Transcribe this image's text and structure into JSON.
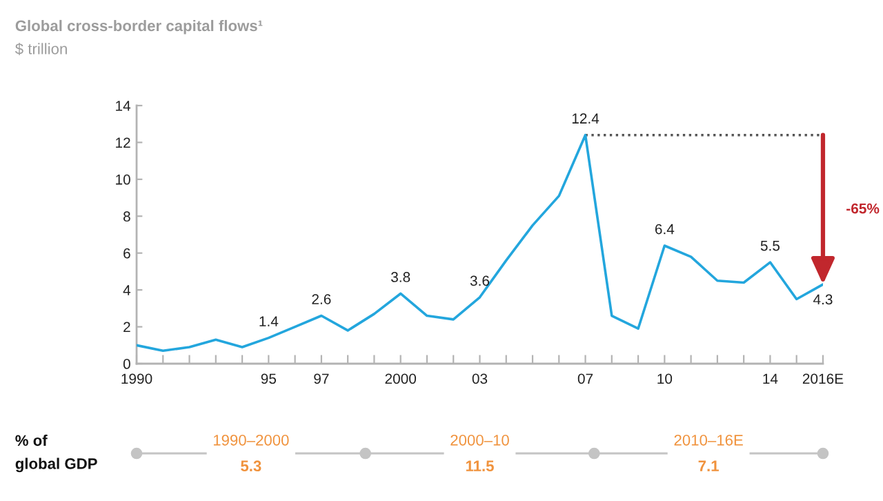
{
  "chart_data": [
    {
      "type": "line",
      "title": "Global cross-border capital flows¹",
      "subtitle": "$ trillion",
      "x": [
        1990,
        1991,
        1992,
        1993,
        1994,
        1995,
        1996,
        1997,
        1998,
        1999,
        2000,
        2001,
        2002,
        2003,
        2004,
        2005,
        2006,
        2007,
        2008,
        2009,
        2010,
        2011,
        2012,
        2013,
        2014,
        2015,
        2016
      ],
      "series": [
        {
          "color": "#23a6dd",
          "values": [
            1.0,
            0.7,
            0.9,
            1.3,
            0.9,
            1.4,
            2.0,
            2.6,
            1.8,
            2.7,
            3.8,
            2.6,
            2.4,
            3.6,
            5.6,
            7.5,
            9.1,
            12.4,
            2.6,
            1.9,
            6.4,
            5.8,
            4.5,
            4.4,
            5.5,
            3.5,
            4.3
          ],
          "value_labels": [
            null,
            null,
            null,
            null,
            null,
            "1.4",
            null,
            "2.6",
            null,
            null,
            "3.8",
            null,
            null,
            "3.6",
            null,
            null,
            null,
            "12.4",
            null,
            null,
            "6.4",
            null,
            null,
            null,
            "5.5",
            null,
            "4.3"
          ]
        },
        {
          "type": "line",
          "x": [
            2007,
            2016
          ],
          "values": [
            12.4,
            12.4
          ],
          "color": "#555555",
          "line_style": "dotted"
        }
      ],
      "xlim": [
        1990,
        2016
      ],
      "xticks": [
        1990,
        {
          "value": 1991,
          "label": null
        },
        {
          "value": 1992,
          "label": null
        },
        {
          "value": 1993,
          "label": null
        },
        {
          "value": 1994,
          "label": null
        },
        {
          "value": 1995,
          "label": "95"
        },
        {
          "value": 1996,
          "label": null
        },
        {
          "value": 1997,
          "label": "97"
        },
        {
          "value": 1998,
          "label": null
        },
        {
          "value": 1999,
          "label": null
        },
        2000,
        {
          "value": 2001,
          "label": null
        },
        {
          "value": 2002,
          "label": null
        },
        {
          "value": 2003,
          "label": "03"
        },
        {
          "value": 2004,
          "label": null
        },
        {
          "value": 2005,
          "label": null
        },
        {
          "value": 2006,
          "label": null
        },
        {
          "value": 2007,
          "label": "07"
        },
        {
          "value": 2008,
          "label": null
        },
        {
          "value": 2009,
          "label": null
        },
        {
          "value": 2010,
          "label": "10"
        },
        {
          "value": 2011,
          "label": null
        },
        {
          "value": 2012,
          "label": null
        },
        {
          "value": 2013,
          "label": null
        },
        {
          "value": 2014,
          "label": "14"
        },
        {
          "value": 2015,
          "label": null
        },
        {
          "value": 2016,
          "label": "2016E"
        }
      ],
      "ylim": [
        0,
        14
      ],
      "yticks": [
        0,
        2,
        4,
        6,
        8,
        10,
        12,
        14
      ],
      "annotations": [
        "-65%"
      ]
    },
    {
      "type": "other",
      "title": "% of\nglobal GDP",
      "categories": [
        "1990–2000",
        "2000–10",
        "2010–16E"
      ],
      "values": [
        5.3,
        11.5,
        7.1
      ],
      "data_labels": true,
      "color": "#c4c4c4",
      "colors": [
        "#f0923c",
        "#f0923c",
        "#f0923c"
      ]
    }
  ]
}
